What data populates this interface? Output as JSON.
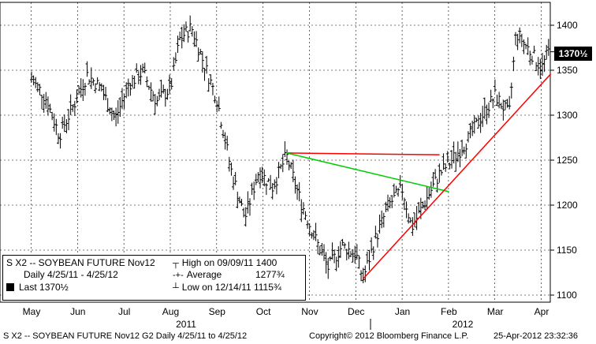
{
  "chart_data": {
    "type": "ohlc",
    "title": "S X2 -- SOYBEAN FUTURE  Nov12",
    "xlabel": "",
    "ylabel": "",
    "ylim": [
      1095,
      1420
    ],
    "yticks": [
      1100,
      1150,
      1200,
      1250,
      1300,
      1350,
      1400
    ],
    "grid": true,
    "months": [
      "May",
      "Jun",
      "Jul",
      "Aug",
      "Sep",
      "Oct",
      "Nov",
      "Dec",
      "Jan",
      "Feb",
      "Mar",
      "Apr"
    ],
    "years": [
      "2011",
      "2012"
    ],
    "price_path": [
      {
        "month_pos": 0.0,
        "value": 1340
      },
      {
        "month_pos": 0.3,
        "value": 1320
      },
      {
        "month_pos": 0.6,
        "value": 1278
      },
      {
        "month_pos": 0.9,
        "value": 1310
      },
      {
        "month_pos": 1.2,
        "value": 1345
      },
      {
        "month_pos": 1.5,
        "value": 1330
      },
      {
        "month_pos": 1.8,
        "value": 1295
      },
      {
        "month_pos": 2.1,
        "value": 1335
      },
      {
        "month_pos": 2.4,
        "value": 1348
      },
      {
        "month_pos": 2.7,
        "value": 1315
      },
      {
        "month_pos": 3.0,
        "value": 1330
      },
      {
        "month_pos": 3.2,
        "value": 1385
      },
      {
        "month_pos": 3.45,
        "value": 1398
      },
      {
        "month_pos": 3.7,
        "value": 1360
      },
      {
        "month_pos": 4.0,
        "value": 1318
      },
      {
        "month_pos": 4.3,
        "value": 1240
      },
      {
        "month_pos": 4.6,
        "value": 1185
      },
      {
        "month_pos": 4.9,
        "value": 1238
      },
      {
        "month_pos": 5.2,
        "value": 1220
      },
      {
        "month_pos": 5.5,
        "value": 1255
      },
      {
        "month_pos": 5.8,
        "value": 1205
      },
      {
        "month_pos": 6.1,
        "value": 1165
      },
      {
        "month_pos": 6.4,
        "value": 1130
      },
      {
        "month_pos": 6.7,
        "value": 1155
      },
      {
        "month_pos": 7.0,
        "value": 1145
      },
      {
        "month_pos": 7.15,
        "value": 1118
      },
      {
        "month_pos": 7.4,
        "value": 1160
      },
      {
        "month_pos": 7.7,
        "value": 1200
      },
      {
        "month_pos": 8.0,
        "value": 1218
      },
      {
        "month_pos": 8.2,
        "value": 1175
      },
      {
        "month_pos": 8.5,
        "value": 1205
      },
      {
        "month_pos": 8.8,
        "value": 1235
      },
      {
        "month_pos": 9.1,
        "value": 1252
      },
      {
        "month_pos": 9.4,
        "value": 1272
      },
      {
        "month_pos": 9.7,
        "value": 1298
      },
      {
        "month_pos": 10.0,
        "value": 1322
      },
      {
        "month_pos": 10.3,
        "value": 1300
      },
      {
        "month_pos": 10.45,
        "value": 1392
      },
      {
        "month_pos": 10.7,
        "value": 1375
      },
      {
        "month_pos": 11.0,
        "value": 1352
      },
      {
        "month_pos": 11.15,
        "value": 1370.5
      }
    ],
    "trendlines": [
      {
        "color": "#ff0000",
        "from": {
          "month_pos": 5.5,
          "value": 1258
        },
        "to": {
          "month_pos": 8.8,
          "value": 1256
        }
      },
      {
        "color": "#00cc00",
        "from": {
          "month_pos": 5.5,
          "value": 1258
        },
        "to": {
          "month_pos": 9.0,
          "value": 1215
        }
      },
      {
        "color": "#ff0000",
        "from": {
          "month_pos": 7.15,
          "value": 1118
        },
        "to": {
          "month_pos": 11.2,
          "value": 1346
        }
      }
    ],
    "last_value_label": "1370½"
  },
  "legend": {
    "line1": "S X2 -- SOYBEAN FUTURE  Nov12",
    "line2": "Daily 4/25/11  - 4/25/12",
    "line3": "Last 1370½",
    "high_label": "High on 09/09/11  1400",
    "avg_label": "Average",
    "avg_value": "1277¾",
    "low_label": "Low on 12/14/11  1115¾"
  },
  "footer": {
    "left": "S X2 -- SOYBEAN FUTURE  Nov12    G2  Daily  4/25/11 to 4/25/12",
    "mid": "Copyright© 2012 Bloomberg Finance L.P.",
    "right": "25-Apr-2012 23:32:36"
  }
}
